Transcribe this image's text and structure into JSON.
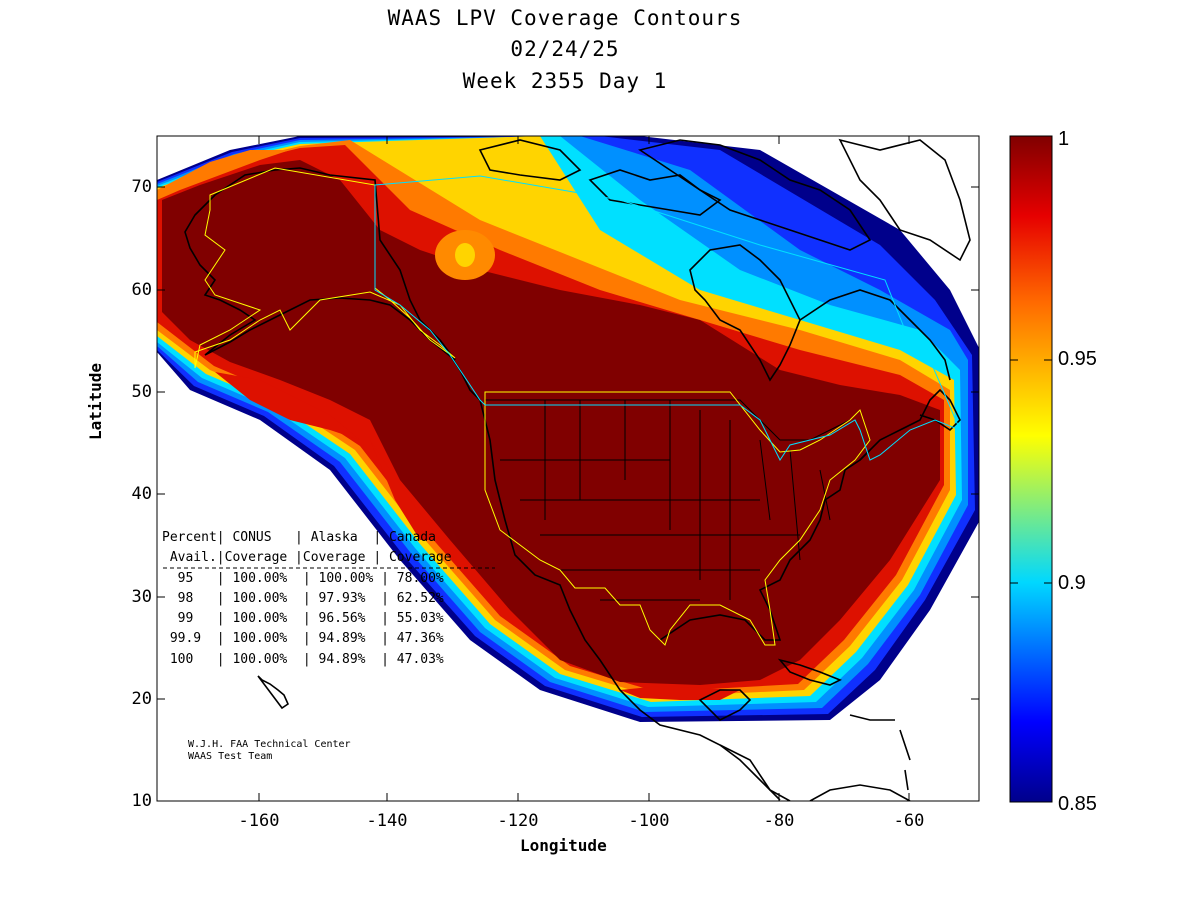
{
  "title": {
    "line1": "WAAS LPV Coverage Contours",
    "line2": "02/24/25",
    "line3": "Week 2355 Day 1"
  },
  "axes": {
    "xlabel": "Longitude",
    "ylabel": "Latitude",
    "xticks": [
      "-160",
      "-140",
      "-120",
      "-100",
      "-80",
      "-60"
    ],
    "yticks": [
      "70",
      "60",
      "50",
      "40",
      "30",
      "20",
      "10"
    ],
    "xlim": [
      -175,
      -50
    ],
    "ylim": [
      10,
      75
    ]
  },
  "colorbar": {
    "ticks": [
      "1",
      "0.95",
      "0.9",
      "0.85"
    ],
    "range": [
      0.85,
      1.0
    ],
    "colormap": "jet"
  },
  "table": {
    "header1": "Percent| CONUS   | Alaska  | Canada",
    "header2": " Avail.|Coverage |Coverage | Coverage",
    "separator": "------------------------------------------------",
    "rows": [
      "  95   | 100.00%  | 100.00% | 78.00%",
      "  98   | 100.00%  | 97.93%  | 62.52%",
      "  99   | 100.00%  | 96.56%  | 55.03%",
      " 99.9  | 100.00%  | 94.89%  | 47.36%",
      " 100   | 100.00%  | 94.89%  | 47.03%"
    ]
  },
  "credit": {
    "line1": "W.J.H. FAA Technical Center",
    "line2": "WAAS Test Team"
  },
  "colors": {
    "max": "#800000",
    "red": "#dd1100",
    "orange": "#ff7a00",
    "yellow": "#ffd400",
    "cyan": "#00e0ff",
    "blue": "#0040ff",
    "navy": "#00008b"
  }
}
